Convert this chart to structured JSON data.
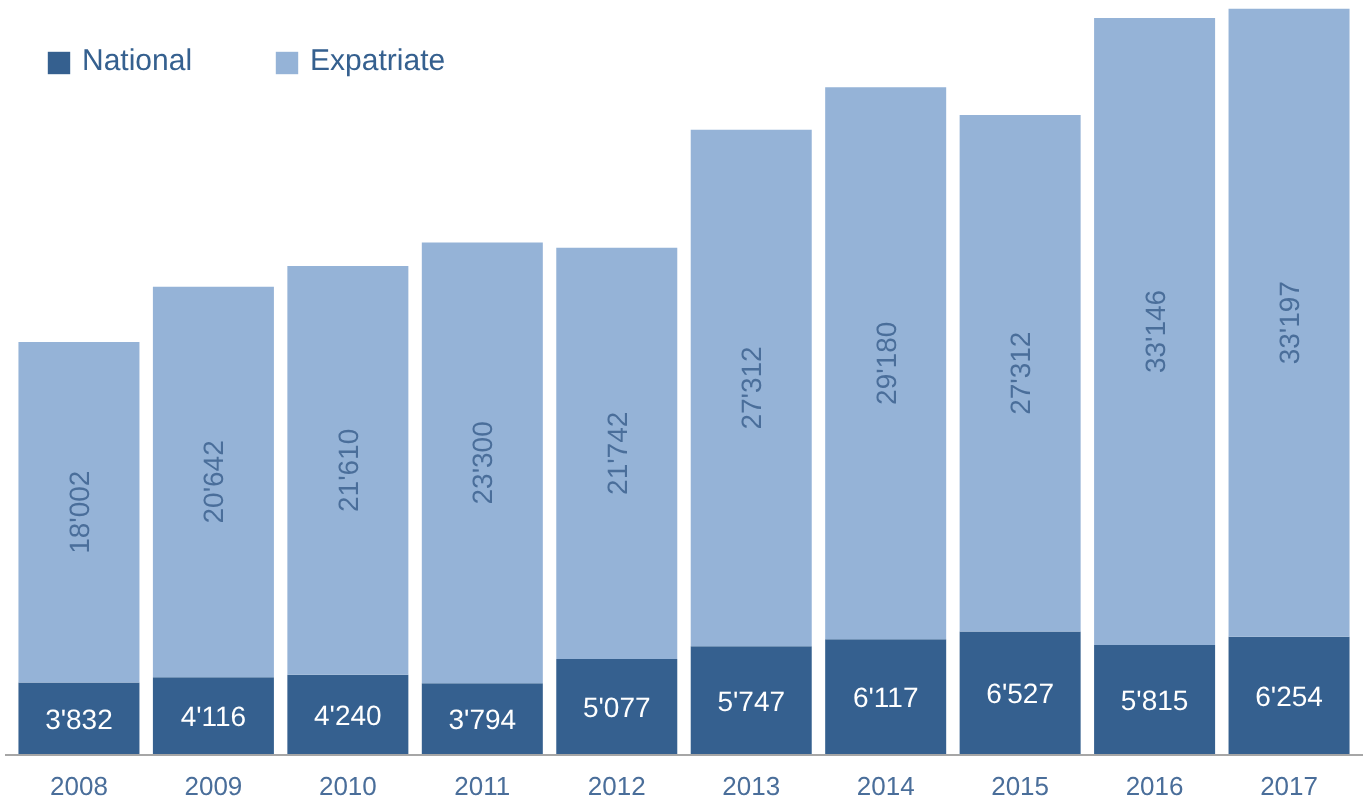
{
  "chart_data": {
    "type": "bar",
    "stacked": true,
    "categories": [
      "2008",
      "2009",
      "2010",
      "2011",
      "2012",
      "2013",
      "2014",
      "2015",
      "2016",
      "2017"
    ],
    "series": [
      {
        "name": "National",
        "color": "#35608f",
        "values": [
          3832,
          4116,
          4240,
          3794,
          5077,
          5747,
          6117,
          6527,
          5815,
          6254
        ],
        "value_labels": [
          "3'832",
          "4'116",
          "4'240",
          "3'794",
          "5'077",
          "5'747",
          "6'117",
          "6'527",
          "5'815",
          "6'254"
        ]
      },
      {
        "name": "Expatriate",
        "color": "#95b3d7",
        "values": [
          18002,
          20642,
          21610,
          23300,
          21742,
          27312,
          29180,
          27312,
          33146,
          33197
        ],
        "value_labels": [
          "18'002",
          "20'642",
          "21'610",
          "23'300",
          "21'742",
          "27'312",
          "29'180",
          "27'312",
          "33'146",
          "33'197"
        ]
      }
    ],
    "legend": "top left",
    "grid": false
  }
}
